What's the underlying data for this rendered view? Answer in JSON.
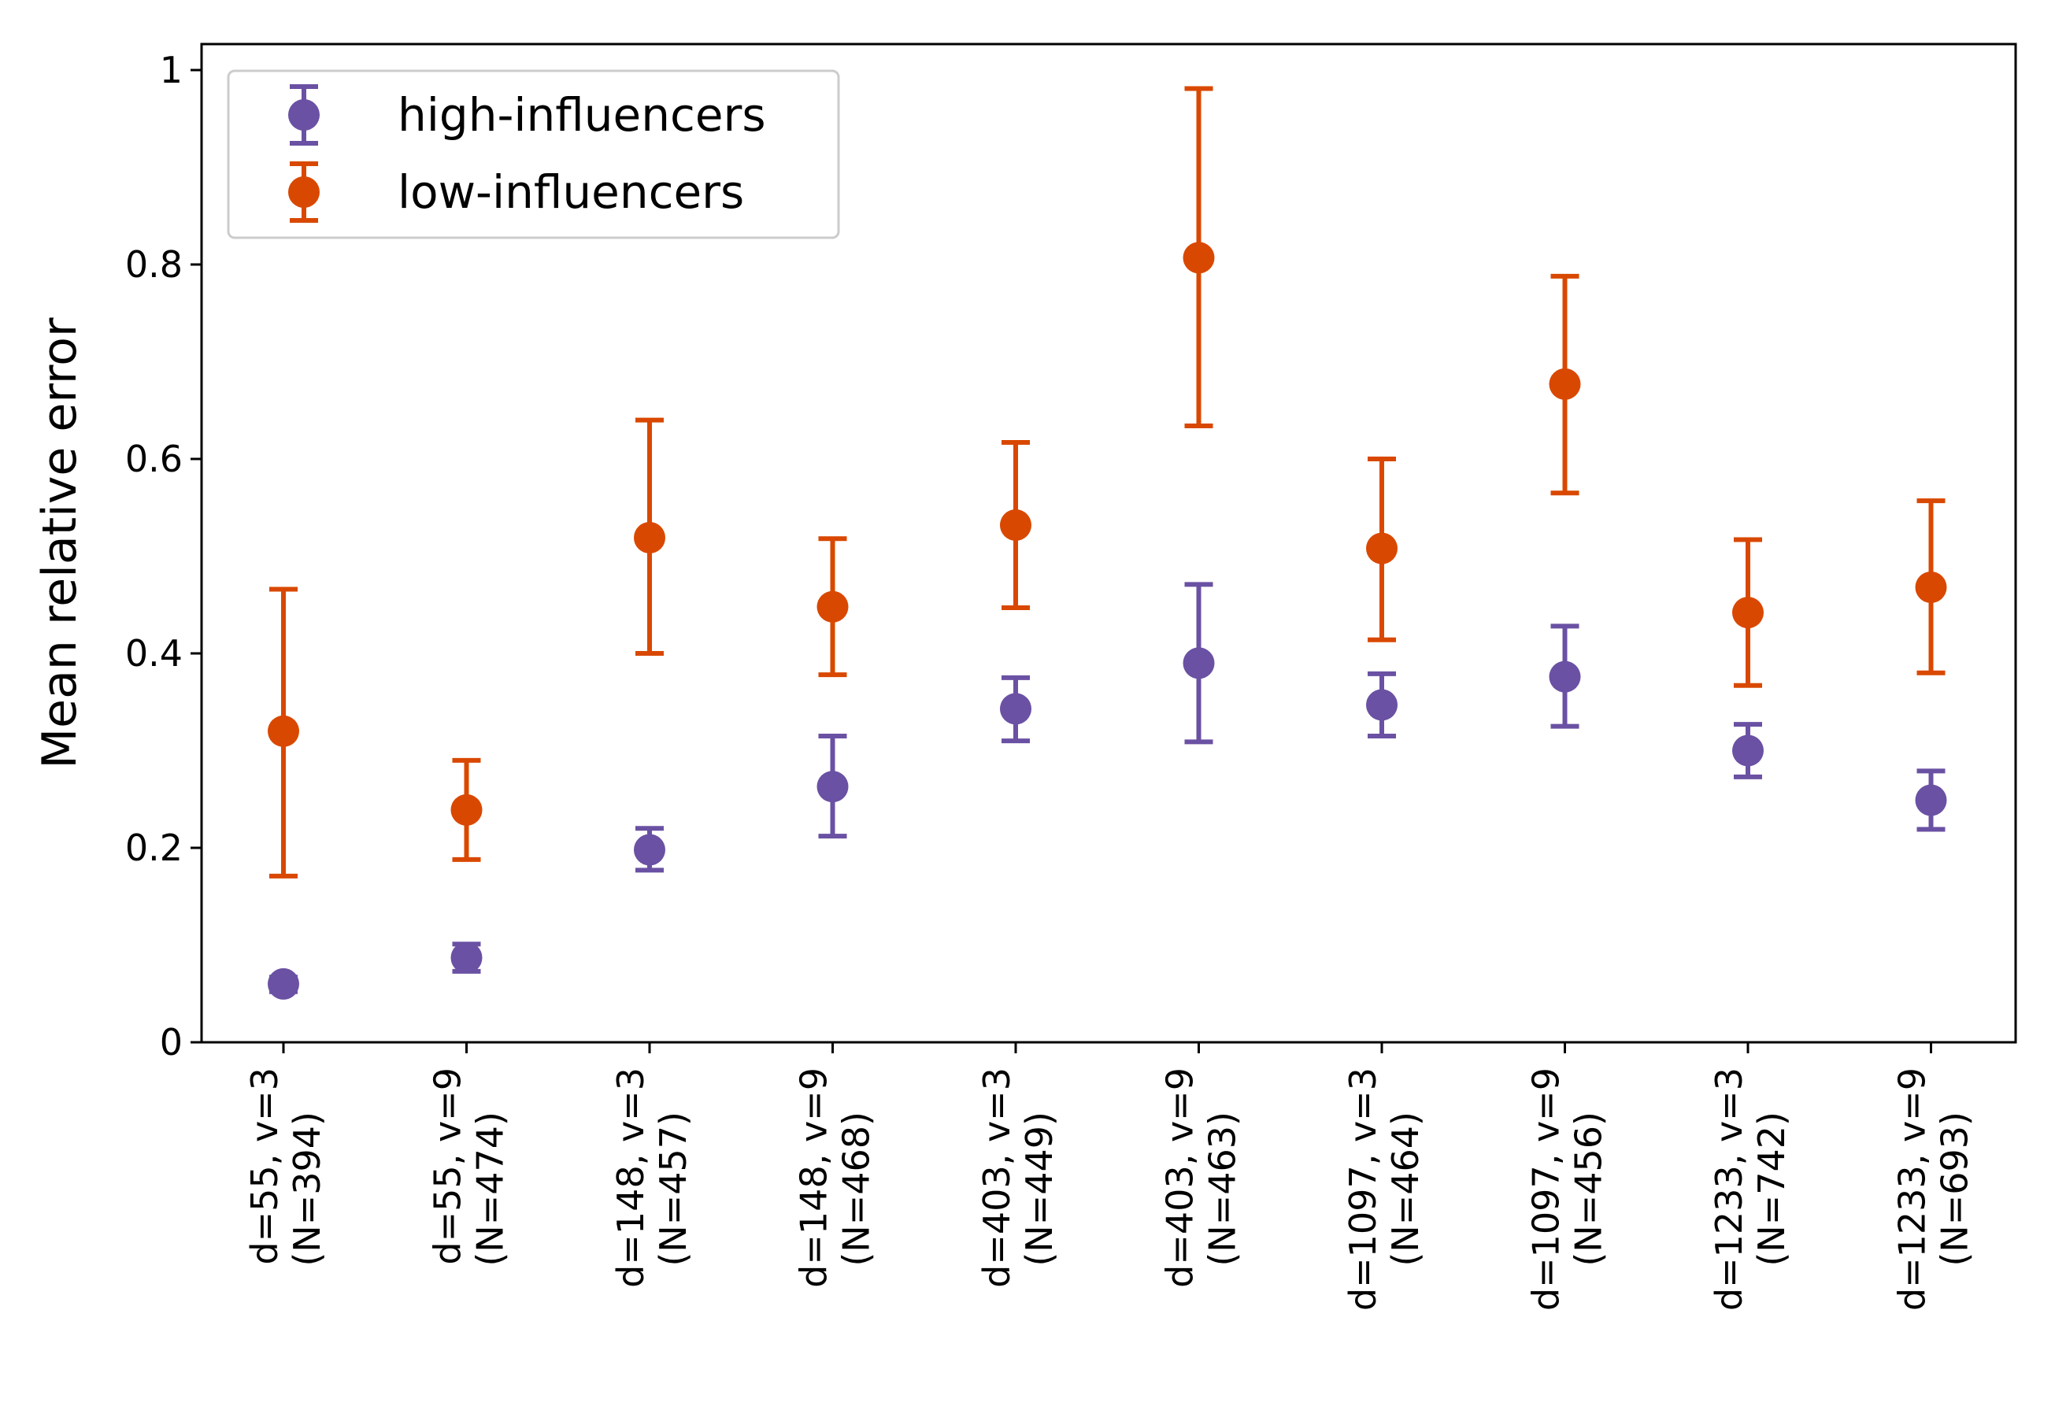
{
  "chart_data": {
    "type": "scatter",
    "title": "",
    "xlabel": "",
    "ylabel": "Mean relative error",
    "ylim": [
      0,
      1.02
    ],
    "yticks": [
      {
        "value": 0,
        "label": "0"
      },
      {
        "value": 0.2,
        "label": "0.2"
      },
      {
        "value": 0.4,
        "label": "0.4"
      },
      {
        "value": 0.6,
        "label": "0.6"
      },
      {
        "value": 0.8,
        "label": "0.8"
      },
      {
        "value": 1.0,
        "label": "1"
      }
    ],
    "categories": [
      {
        "line1": "d=55, v=3",
        "line2": "(N=394)"
      },
      {
        "line1": "d=55, v=9",
        "line2": "(N=474)"
      },
      {
        "line1": "d=148, v=3",
        "line2": "(N=457)"
      },
      {
        "line1": "d=148, v=9",
        "line2": "(N=468)"
      },
      {
        "line1": "d=403, v=3",
        "line2": "(N=449)"
      },
      {
        "line1": "d=403, v=9",
        "line2": "(N=463)"
      },
      {
        "line1": "d=1097, v=3",
        "line2": "(N=464)"
      },
      {
        "line1": "d=1097, v=9",
        "line2": "(N=456)"
      },
      {
        "line1": "d=1233, v=3",
        "line2": "(N=742)"
      },
      {
        "line1": "d=1233, v=9",
        "line2": "(N=693)"
      }
    ],
    "legend_position": "top-left",
    "grid": false,
    "series": [
      {
        "name": "high-influencers",
        "color": "#6a51a3",
        "values": [
          0.06,
          0.087,
          0.198,
          0.263,
          0.343,
          0.39,
          0.347,
          0.376,
          0.3,
          0.249
        ],
        "lower": [
          0.052,
          0.073,
          0.177,
          0.212,
          0.31,
          0.309,
          0.315,
          0.325,
          0.273,
          0.219
        ],
        "upper": [
          0.067,
          0.101,
          0.22,
          0.315,
          0.375,
          0.471,
          0.379,
          0.428,
          0.327,
          0.279
        ]
      },
      {
        "name": "low-influencers",
        "color": "#d94801",
        "values": [
          0.32,
          0.239,
          0.519,
          0.448,
          0.532,
          0.807,
          0.508,
          0.677,
          0.442,
          0.468
        ],
        "lower": [
          0.171,
          0.188,
          0.4,
          0.378,
          0.447,
          0.634,
          0.414,
          0.565,
          0.367,
          0.38
        ],
        "upper": [
          0.466,
          0.29,
          0.64,
          0.518,
          0.617,
          0.981,
          0.6,
          0.788,
          0.517,
          0.557
        ]
      }
    ]
  }
}
